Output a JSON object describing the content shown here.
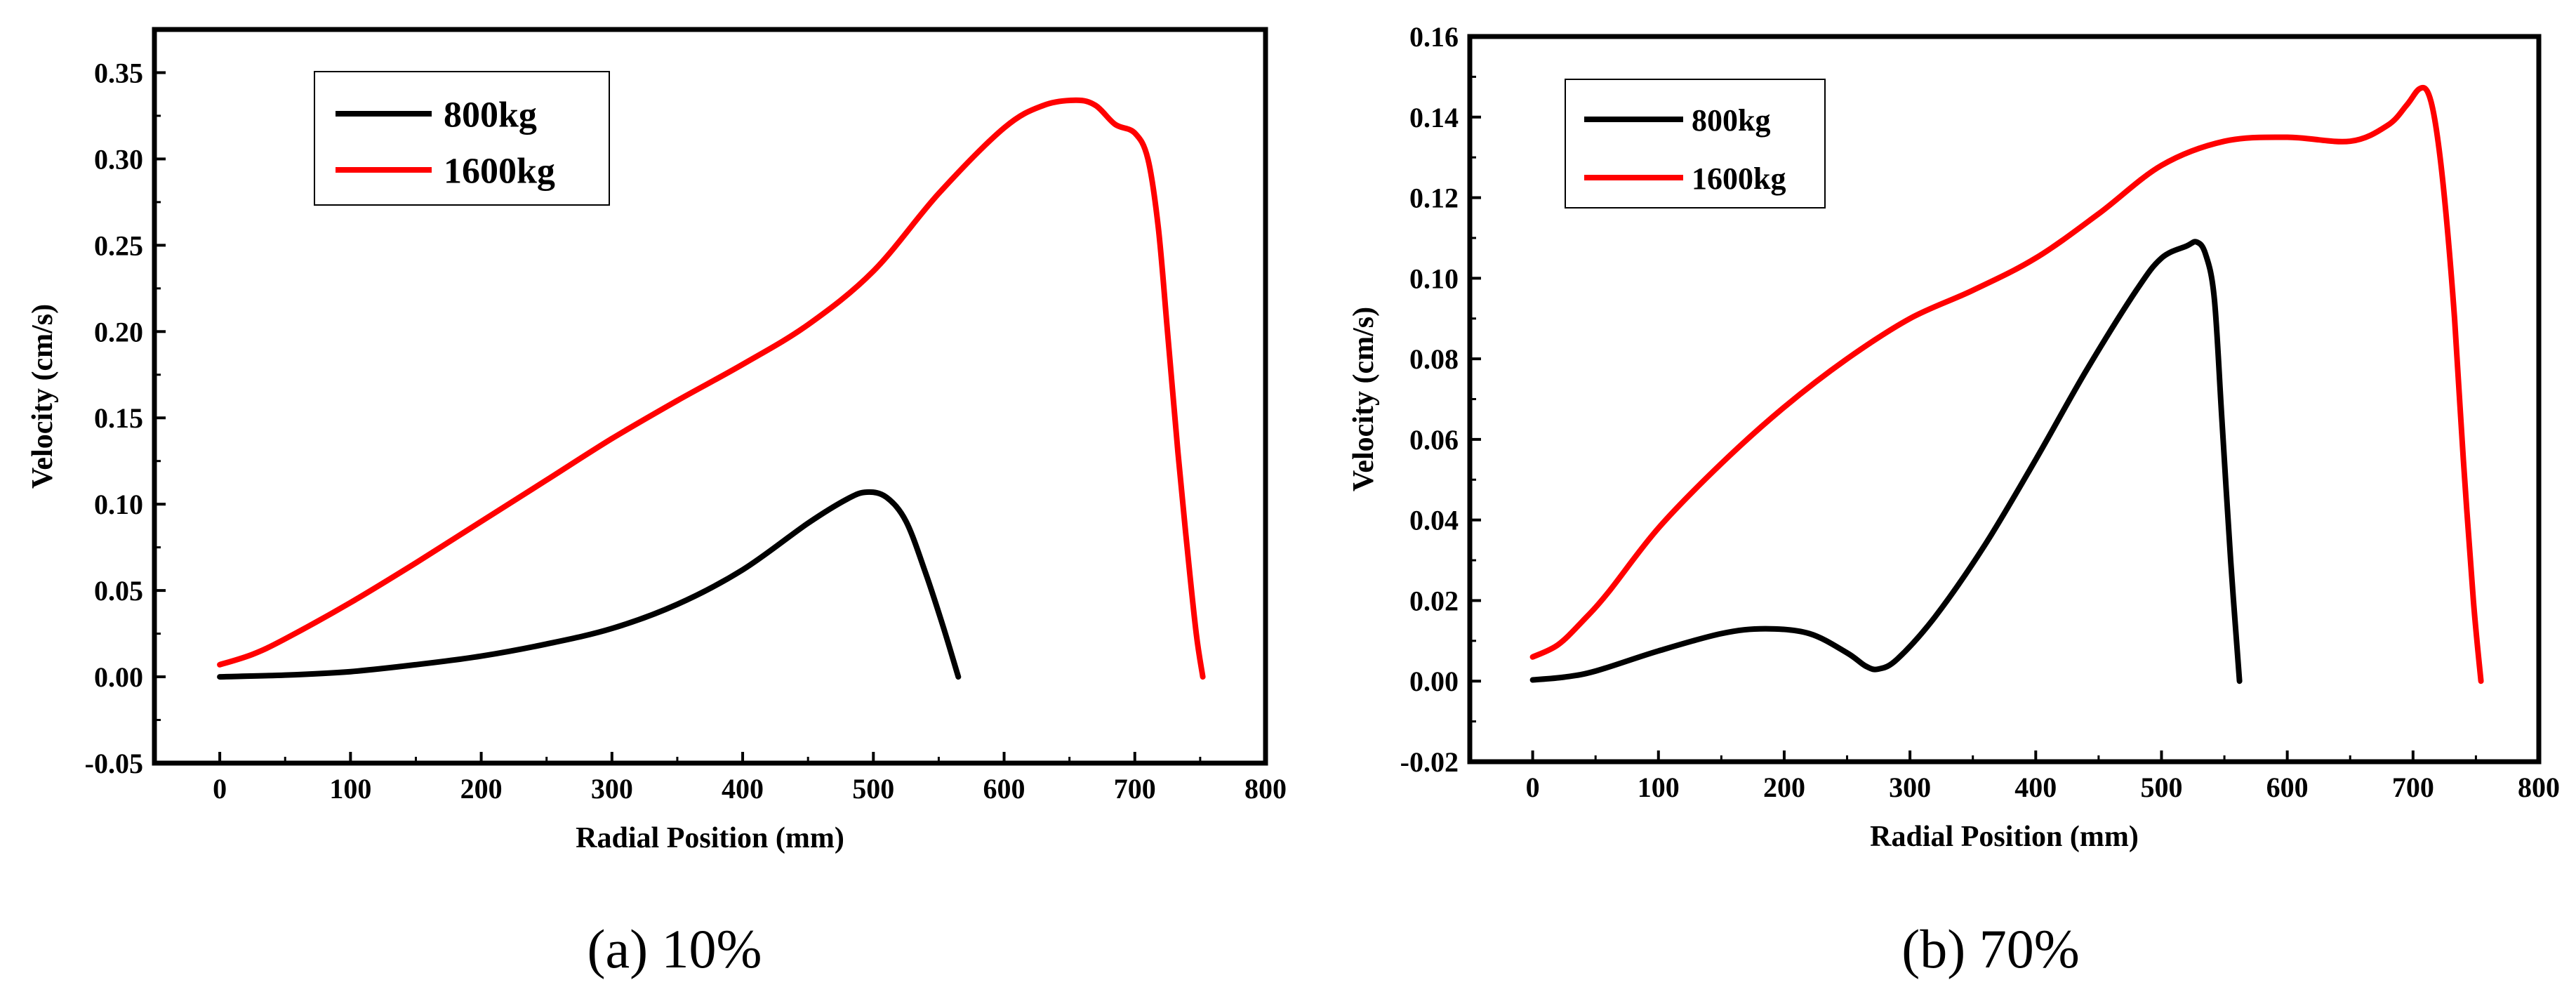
{
  "chart_data": [
    {
      "type": "line",
      "caption": "(a) 10%",
      "xlabel": "Radial Position (mm)",
      "ylabel": "Velocity (cm/s)",
      "xlim": [
        -50,
        800
      ],
      "ylim": [
        -0.05,
        0.375
      ],
      "xticks": [
        0,
        100,
        200,
        300,
        400,
        500,
        600,
        700,
        800
      ],
      "xtick_labels": [
        "0",
        "100",
        "200",
        "300",
        "400",
        "500",
        "600",
        "700",
        "800"
      ],
      "yticks": [
        -0.05,
        0,
        0.05,
        0.1,
        0.15,
        0.2,
        0.25,
        0.3,
        0.35
      ],
      "ytick_labels": [
        "-0.05",
        "0.00",
        "0.05",
        "0.10",
        "0.15",
        "0.20",
        "0.25",
        "0.30",
        "0.35"
      ],
      "legend_position": "top-left",
      "series": [
        {
          "name": "800kg",
          "color": "#000000",
          "x": [
            0,
            50,
            100,
            150,
            200,
            250,
            300,
            350,
            400,
            450,
            480,
            495,
            510,
            525,
            540,
            553,
            565
          ],
          "y": [
            0.0,
            0.001,
            0.003,
            0.007,
            0.012,
            0.019,
            0.028,
            0.042,
            0.062,
            0.089,
            0.103,
            0.107,
            0.104,
            0.09,
            0.06,
            0.03,
            0.0
          ]
        },
        {
          "name": "1600kg",
          "color": "#ff0000",
          "x": [
            0,
            25,
            50,
            100,
            150,
            200,
            250,
            300,
            350,
            400,
            450,
            500,
            550,
            600,
            630,
            655,
            670,
            685,
            700,
            710,
            718,
            725,
            733,
            740,
            747,
            752
          ],
          "y": [
            0.007,
            0.013,
            0.022,
            0.043,
            0.066,
            0.09,
            0.114,
            0.138,
            0.16,
            0.181,
            0.204,
            0.235,
            0.28,
            0.318,
            0.331,
            0.334,
            0.331,
            0.32,
            0.315,
            0.3,
            0.26,
            0.2,
            0.13,
            0.075,
            0.025,
            0.0
          ]
        }
      ]
    },
    {
      "type": "line",
      "caption": "(b) 70%",
      "xlabel": "Radial Position (mm)",
      "ylabel": "Velocity (cm/s)",
      "xlim": [
        -50,
        800
      ],
      "ylim": [
        -0.02,
        0.16
      ],
      "xticks": [
        0,
        100,
        200,
        300,
        400,
        500,
        600,
        700,
        800
      ],
      "xtick_labels": [
        "0",
        "100",
        "200",
        "300",
        "400",
        "500",
        "600",
        "700",
        "800"
      ],
      "yticks": [
        -0.02,
        0,
        0.02,
        0.04,
        0.06,
        0.08,
        0.1,
        0.12,
        0.14,
        0.16
      ],
      "ytick_labels": [
        "-0.02",
        "0.00",
        "0.02",
        "0.04",
        "0.06",
        "0.08",
        "0.10",
        "0.12",
        "0.14",
        "0.16"
      ],
      "legend_position": "top-left",
      "series": [
        {
          "name": "800kg",
          "color": "#000000",
          "x": [
            0,
            25,
            50,
            100,
            150,
            185,
            220,
            250,
            265,
            275,
            290,
            320,
            360,
            400,
            440,
            480,
            500,
            520,
            528,
            535,
            542,
            548,
            555,
            562
          ],
          "y": [
            0.0003,
            0.001,
            0.0025,
            0.0075,
            0.0118,
            0.013,
            0.0118,
            0.007,
            0.0037,
            0.003,
            0.0055,
            0.016,
            0.034,
            0.055,
            0.077,
            0.097,
            0.105,
            0.108,
            0.109,
            0.106,
            0.095,
            0.065,
            0.03,
            0.0
          ]
        },
        {
          "name": "1600kg",
          "color": "#ff0000",
          "x": [
            0,
            20,
            40,
            60,
            100,
            150,
            200,
            250,
            300,
            350,
            400,
            450,
            500,
            550,
            600,
            650,
            680,
            695,
            705,
            712,
            718,
            725,
            733,
            740,
            748,
            754
          ],
          "y": [
            0.006,
            0.009,
            0.015,
            0.022,
            0.038,
            0.054,
            0.068,
            0.08,
            0.09,
            0.097,
            0.105,
            0.116,
            0.128,
            0.134,
            0.135,
            0.134,
            0.138,
            0.143,
            0.147,
            0.146,
            0.138,
            0.12,
            0.09,
            0.055,
            0.02,
            0.0
          ]
        }
      ]
    }
  ]
}
